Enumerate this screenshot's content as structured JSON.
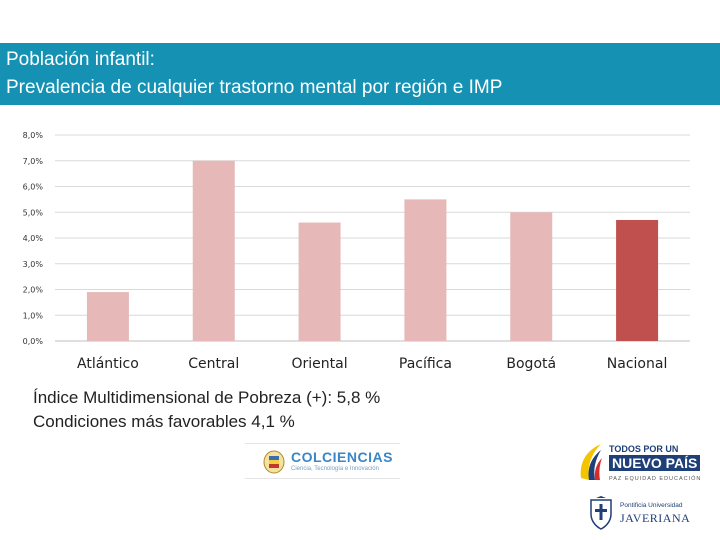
{
  "header": {
    "line1": "Población infantil:",
    "line2": "Prevalencia de cualquier trastorno mental por región e IMP"
  },
  "chart_data": {
    "type": "bar",
    "title": "Prevalencia de cualquier trastorno mental por región e IMP",
    "categories": [
      "Atlántico",
      "Central",
      "Oriental",
      "Pacífica",
      "Bogotá",
      "Nacional"
    ],
    "values": [
      1.9,
      7.0,
      4.6,
      5.5,
      5.0,
      4.7
    ],
    "colors": [
      "#e6b9b8",
      "#e6b9b8",
      "#e6b9b8",
      "#e6b9b8",
      "#e6b9b8",
      "#c0504d"
    ],
    "ylim": [
      0,
      8
    ],
    "yticks": [
      "0,0%",
      "1,0%",
      "2,0%",
      "3,0%",
      "4,0%",
      "5,0%",
      "6,0%",
      "7,0%",
      "8,0%"
    ],
    "grid": true,
    "xlabel": "",
    "ylabel": ""
  },
  "notes": {
    "line1": "Índice Multidimensional de Pobreza  (+): 5,8 %",
    "line2": "Condiciones más favorables  4,1 %"
  },
  "logos": {
    "colciencias_name": "COLCIENCIAS",
    "colciencias_sub": "Ciencia, Tecnología e Innovación",
    "nuevo_pais_line1": "TODOS POR UN",
    "nuevo_pais_line2": "NUEVO PAÍS",
    "nuevo_pais_line3": "PAZ  EQUIDAD  EDUCACIÓN",
    "javeriana_line1": "Pontificia Universidad",
    "javeriana_line2": "JAVERIANA"
  }
}
